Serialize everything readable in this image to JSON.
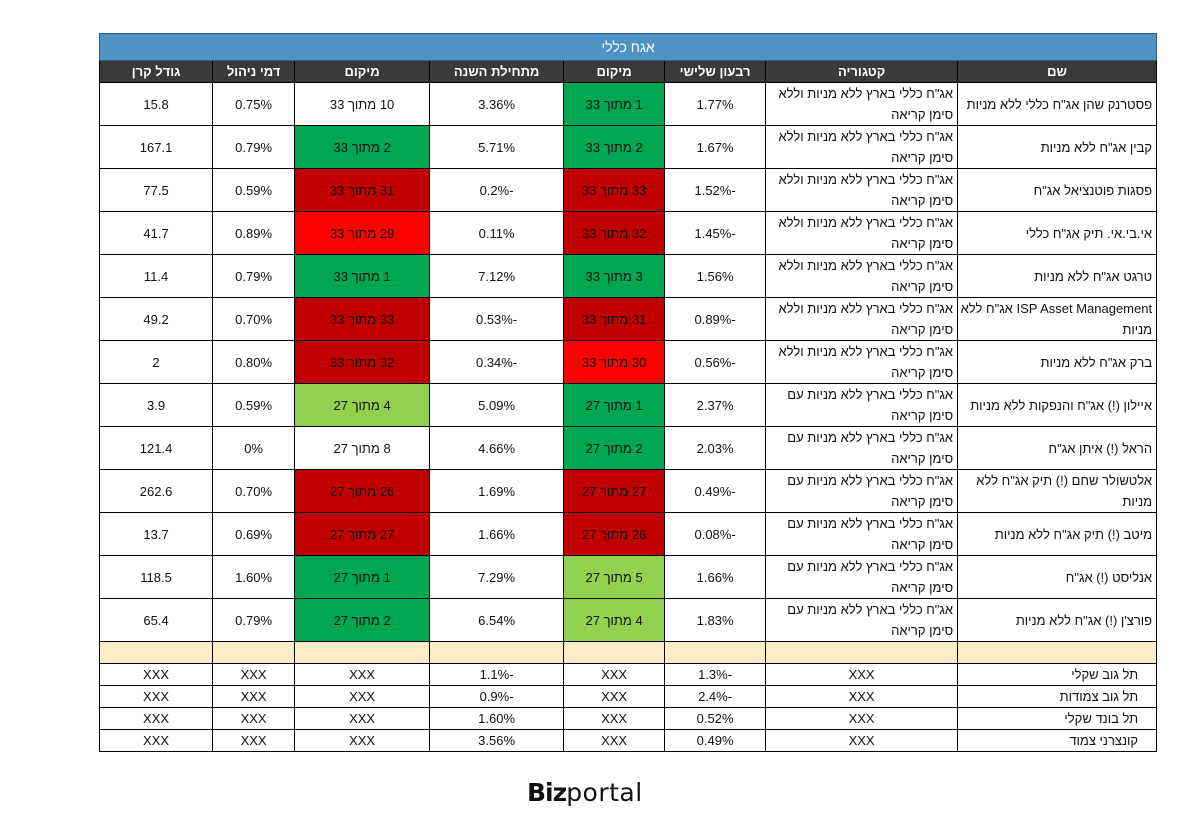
{
  "table": {
    "title": "אגח כללי",
    "headers": [
      "שם",
      "קטגוריה",
      "רבעון שלישי",
      "מיקום",
      "מתחילת השנה",
      "מיקום",
      "דמי ניהול",
      "גודל קרן"
    ],
    "rows": [
      {
        "name": "פסטרנק שהן אג\"ח כללי ללא מניות",
        "category": "אג\"ח כללי בארץ ללא מניות וללא סימן קריאה",
        "q3": "1.77%",
        "rank_q3": "1 מתוך 33",
        "ytd": "3.36%",
        "rank_ytd": "10 מתוך 33",
        "fee": "0.75%",
        "size": "15.8"
      },
      {
        "name": "קבין אג\"ח ללא מניות",
        "category": "אג\"ח כללי בארץ ללא מניות וללא סימן קריאה",
        "q3": "1.67%",
        "rank_q3": "2 מתוך 33",
        "ytd": "5.71%",
        "rank_ytd": "2 מתוך 33",
        "fee": "0.79%",
        "size": "167.1"
      },
      {
        "name": "פסגות פוטנציאל אג\"ח",
        "category": "אג\"ח כללי בארץ ללא מניות וללא סימן קריאה",
        "q3": "-1.52%",
        "rank_q3": "33 מתוך 33",
        "ytd": "-0.2%",
        "rank_ytd": "31 מתוך 33",
        "fee": "0.59%",
        "size": "77.5"
      },
      {
        "name": "אי.בי.אי. תיק אג\"ח כללי",
        "category": "אג\"ח כללי בארץ ללא מניות וללא סימן קריאה",
        "q3": "-1.45%",
        "rank_q3": "32 מתוך 33",
        "ytd": "0.11%",
        "rank_ytd": "29 מתוך 33",
        "fee": "0.89%",
        "size": "41.7"
      },
      {
        "name": "טרגט אג\"ח ללא מניות",
        "category": "אג\"ח כללי בארץ ללא מניות וללא סימן קריאה",
        "q3": "1.56%",
        "rank_q3": "3 מתוך 33",
        "ytd": "7.12%",
        "rank_ytd": "1 מתוך 33",
        "fee": "0.79%",
        "size": "11.4"
      },
      {
        "name": "ISP Asset Management אג\"ח ללא מניות",
        "category": "אג\"ח כללי בארץ ללא מניות וללא סימן קריאה",
        "q3": "-0.89%",
        "rank_q3": "31 מתוך 33",
        "ytd": "-0.53%",
        "rank_ytd": "33 מתוך 33",
        "fee": "0.70%",
        "size": "49.2"
      },
      {
        "name": "ברק אג\"ח ללא מניות",
        "category": "אג\"ח כללי בארץ ללא מניות וללא סימן קריאה",
        "q3": "-0.56%",
        "rank_q3": "30 מתוך 33",
        "ytd": "-0.34%",
        "rank_ytd": "32 מתוך 33",
        "fee": "0.80%",
        "size": "2"
      },
      {
        "name": "איילון (!) אג\"ח והנפקות ללא מניות",
        "category": "אג\"ח כללי בארץ ללא מניות עם סימן קריאה",
        "q3": "2.37%",
        "rank_q3": "1 מתוך 27",
        "ytd": "5.09%",
        "rank_ytd": "4 מתוך 27",
        "fee": "0.59%",
        "size": "3.9"
      },
      {
        "name": "הראל (!) איתן אג\"ח",
        "category": "אג\"ח כללי בארץ ללא מניות עם סימן קריאה",
        "q3": "2.03%",
        "rank_q3": "2 מתוך 27",
        "ytd": "4.66%",
        "rank_ytd": "8 מתוך 27",
        "fee": "0%",
        "size": "121.4"
      },
      {
        "name": "אלטשולר שחם (!) תיק אג\"ח ללא מניות",
        "category": "אג\"ח כללי בארץ ללא מניות עם סימן קריאה",
        "q3": "-0.49%",
        "rank_q3": "27 מתוך 27",
        "ytd": "1.69%",
        "rank_ytd": "26 מתוך 27",
        "fee": "0.70%",
        "size": "262.6"
      },
      {
        "name": "מיטב (!) תיק אג\"ח ללא מניות",
        "category": "אג\"ח כללי בארץ ללא מניות עם סימן קריאה",
        "q3": "-0.08%",
        "rank_q3": "26 מתוך 27",
        "ytd": "1.66%",
        "rank_ytd": "27 מתוך 27",
        "fee": "0.69%",
        "size": "13.7"
      },
      {
        "name": "אנליסט (!) אג\"ח",
        "category": "אג\"ח כללי בארץ ללא מניות עם סימן קריאה",
        "q3": "1.66%",
        "rank_q3": "5 מתוך 27",
        "ytd": "7.29%",
        "rank_ytd": "1 מתוך 27",
        "fee": "1.60%",
        "size": "118.5"
      },
      {
        "name": "פורצ'ן (!) אג\"ח ללא מניות",
        "category": "אג\"ח כללי בארץ ללא מניות עם סימן קריאה",
        "q3": "1.83%",
        "rank_q3": "4 מתוך 27",
        "ytd": "6.54%",
        "rank_ytd": "2 מתוך 27",
        "fee": "0.79%",
        "size": "65.4"
      }
    ],
    "benchmarks": [
      {
        "name": "תל גוב שקלי",
        "category": "XXX",
        "q3": "-1.3%",
        "rank_q3": "XXX",
        "ytd": "-1.1%",
        "rank_ytd": "XXX",
        "fee": "XXX",
        "size": "XXX"
      },
      {
        "name": "תל גוב צמודות",
        "category": "XXX",
        "q3": "-2.4%",
        "rank_q3": "XXX",
        "ytd": "-0.9%",
        "rank_ytd": "XXX",
        "fee": "XXX",
        "size": "XXX"
      },
      {
        "name": "תל בונד שקלי",
        "category": "XXX",
        "q3": "0.52%",
        "rank_q3": "XXX",
        "ytd": "1.60%",
        "rank_ytd": "XXX",
        "fee": "XXX",
        "size": "XXX"
      },
      {
        "name": "קונצרני צמוד",
        "category": "XXX",
        "q3": "0.49%",
        "rank_q3": "XXX",
        "ytd": "3.56%",
        "rank_ytd": "XXX",
        "fee": "XXX",
        "size": "XXX"
      }
    ]
  },
  "rank_colors": {
    "top": "#00a651",
    "good": "#92d050",
    "bad": "#c00000",
    "poor": "#ff0000"
  },
  "logo": {
    "bold": "Biz",
    "light": "portal"
  }
}
